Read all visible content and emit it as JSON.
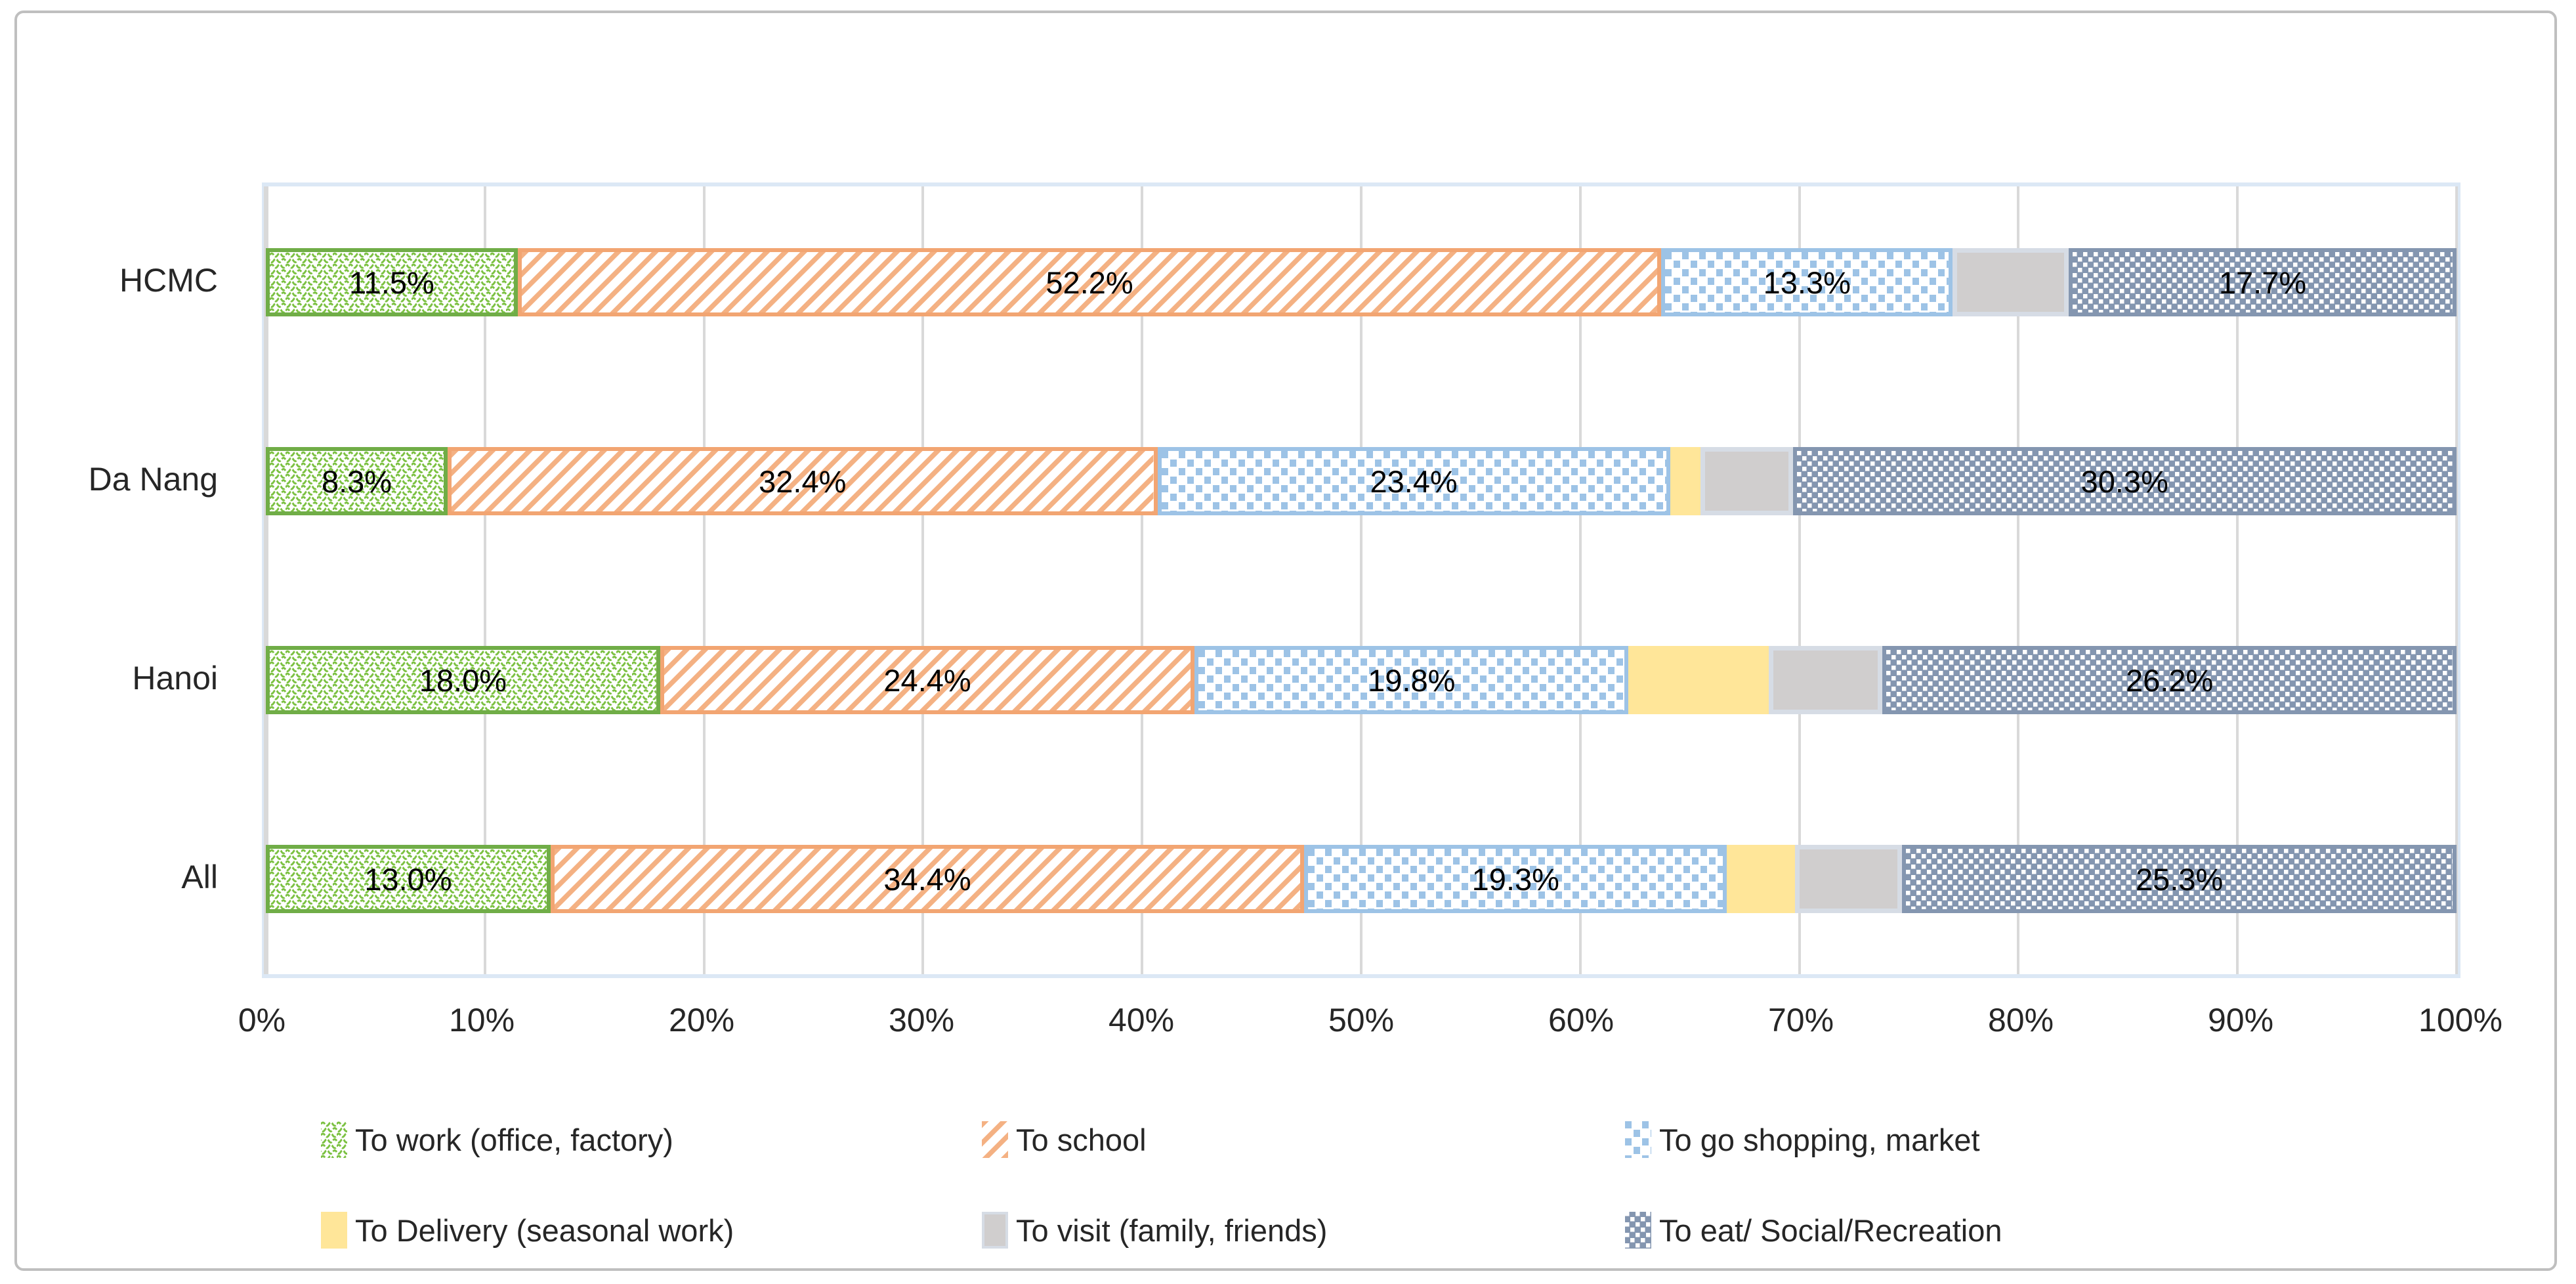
{
  "chart_data": {
    "type": "bar",
    "variant": "horizontal_stacked_100_percent",
    "title": "",
    "categories": [
      "HCMC",
      "Da Nang",
      "Hanoi",
      "All"
    ],
    "series": [
      {
        "name": "To work (office, factory)",
        "swatch": "green-wave",
        "fill": "#7CC142",
        "border": "#70AD47",
        "values": [
          11.5,
          8.3,
          18.0,
          13.0
        ],
        "labels": [
          "11.5%",
          "8.3%",
          "18.0%",
          "13.0%"
        ]
      },
      {
        "name": "To school",
        "swatch": "orange-diagonal",
        "fill": "#F4B183",
        "border": "#F2A572",
        "values": [
          52.2,
          32.4,
          24.4,
          34.4
        ],
        "labels": [
          "52.2%",
          "32.4%",
          "24.4%",
          "34.4%"
        ]
      },
      {
        "name": "To go shopping, market",
        "swatch": "blue-checker",
        "fill": "#9DC3E6",
        "border": "#9DC3E6",
        "values": [
          13.3,
          23.4,
          19.8,
          19.3
        ],
        "labels": [
          "13.3%",
          "23.4%",
          "19.8%",
          "19.3%"
        ]
      },
      {
        "name": "To Delivery (seasonal work)",
        "swatch": "solid-yellow",
        "fill": "#FFE699",
        "border": "#FFE699",
        "values": [
          0.0,
          1.4,
          6.4,
          3.1
        ],
        "labels": [
          "",
          "",
          "",
          ""
        ]
      },
      {
        "name": "To visit (family, friends)",
        "swatch": "solid-gray",
        "fill": "#D0CECE",
        "border": "#D6DCE5",
        "values": [
          5.3,
          4.2,
          5.2,
          4.9
        ],
        "labels": [
          "",
          "",
          "",
          ""
        ]
      },
      {
        "name": "To eat/ Social/Recreation",
        "swatch": "dark-crosshatch",
        "fill": "#8496B0",
        "border": "#8496B0",
        "values": [
          17.7,
          30.3,
          26.2,
          25.3
        ],
        "labels": [
          "17.7%",
          "30.3%",
          "26.2%",
          "25.3%"
        ]
      }
    ],
    "x_ticks": [
      "0%",
      "10%",
      "20%",
      "30%",
      "40%",
      "50%",
      "60%",
      "70%",
      "80%",
      "90%",
      "100%"
    ],
    "xlim": [
      0,
      100
    ],
    "grid": true,
    "legend_position": "bottom",
    "legend_rows": [
      [
        0,
        1,
        2
      ],
      [
        3,
        4,
        5
      ]
    ]
  },
  "colors": {
    "gridline": "#D9D9D9",
    "plot_border": "#DCE8F5",
    "frame_border": "#BFBFBF",
    "data_label": "#000000",
    "axis_text": "#262626",
    "background": "#FFFFFF"
  }
}
